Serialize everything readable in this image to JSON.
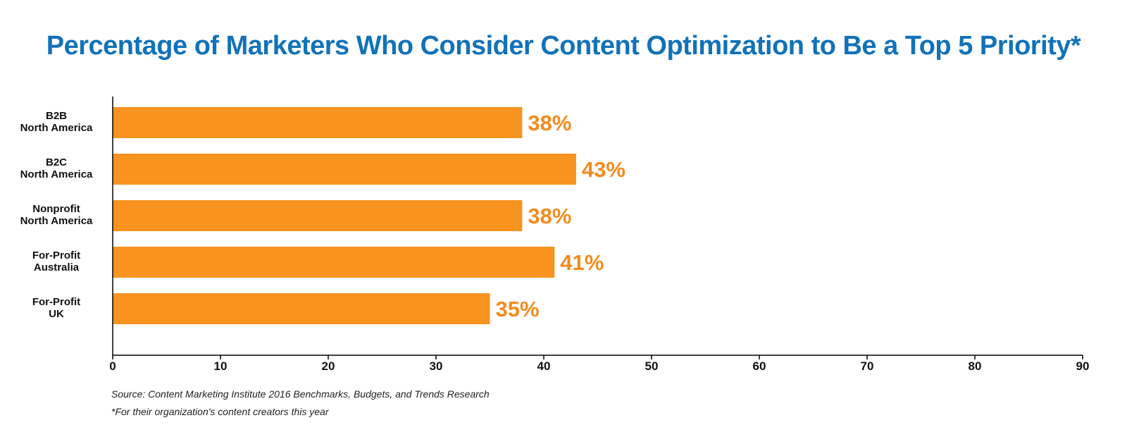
{
  "chart_data": {
    "type": "bar",
    "orientation": "horizontal",
    "title": "Percentage of Marketers Who Consider Content Optimization to Be a Top 5 Priority*",
    "xlabel": "",
    "ylabel": "",
    "categories": [
      [
        "B2B",
        "North America"
      ],
      [
        "B2C",
        "North America"
      ],
      [
        "Nonprofit",
        "North America"
      ],
      [
        "For-Profit",
        "Australia"
      ],
      [
        "For-Profit",
        "UK"
      ]
    ],
    "values": [
      38,
      43,
      38,
      41,
      35
    ],
    "value_labels": [
      "38%",
      "43%",
      "38%",
      "41%",
      "35%"
    ],
    "xlim": [
      0,
      90
    ],
    "xticks": [
      0,
      10,
      20,
      30,
      40,
      50,
      60,
      70,
      80,
      90
    ],
    "grid": false,
    "legend": "none",
    "colors": {
      "bar": "#f7931e",
      "value_label": "#f28b1e",
      "title": "#1172b9",
      "axis": "#000000"
    }
  },
  "notes": {
    "source": "Source: Content Marketing Institute 2016 Benchmarks, Budgets, and Trends Research",
    "footnote": "*For their organization's content creators this year"
  }
}
